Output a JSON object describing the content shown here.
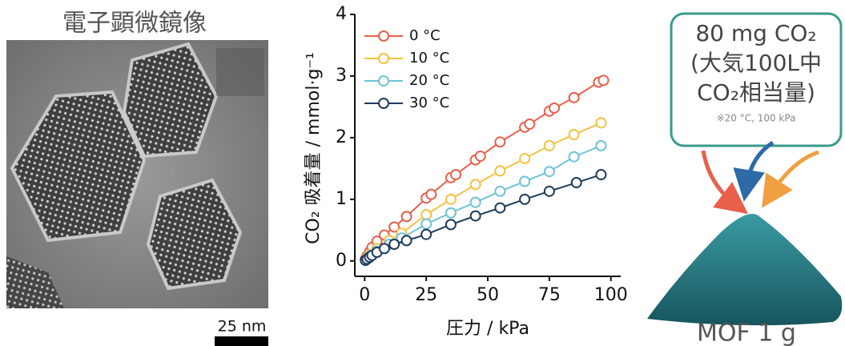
{
  "chart_data": {
    "type": "line",
    "x_label": "圧力 / kPa",
    "y_label": "CO₂ 吸着量 / mmol·g⁻¹",
    "xlim": [
      -4,
      104
    ],
    "ylim": [
      -0.25,
      4
    ],
    "xticks": [
      0,
      25,
      50,
      75,
      100
    ],
    "yticks": [
      0,
      1,
      2,
      3,
      4
    ],
    "legend": "upper-left",
    "series": [
      {
        "name": "0 °C",
        "color": "#e8604c",
        "x": [
          0.3,
          1,
          2,
          3,
          5,
          8,
          12,
          17,
          25,
          27,
          35,
          37,
          45,
          47,
          55,
          65,
          67,
          75,
          77,
          85,
          95,
          97
        ],
        "values": [
          0.03,
          0.08,
          0.15,
          0.22,
          0.32,
          0.42,
          0.55,
          0.72,
          1.02,
          1.08,
          1.35,
          1.4,
          1.64,
          1.7,
          1.93,
          2.17,
          2.22,
          2.43,
          2.48,
          2.65,
          2.9,
          2.93
        ]
      },
      {
        "name": "10 °C",
        "color": "#f5c242",
        "x": [
          0.5,
          2,
          5,
          10,
          15,
          25,
          35,
          45,
          55,
          65,
          75,
          85,
          96
        ],
        "values": [
          0.03,
          0.1,
          0.2,
          0.33,
          0.45,
          0.75,
          1.0,
          1.24,
          1.46,
          1.66,
          1.87,
          2.05,
          2.24
        ]
      },
      {
        "name": "20 °C",
        "color": "#6ec3d8",
        "x": [
          0.5,
          2,
          5,
          10,
          15,
          25,
          35,
          45,
          55,
          65,
          75,
          85,
          96
        ],
        "values": [
          0.02,
          0.08,
          0.16,
          0.27,
          0.37,
          0.6,
          0.78,
          0.95,
          1.13,
          1.29,
          1.45,
          1.69,
          1.87
        ]
      },
      {
        "name": "30 °C",
        "color": "#1f3b5c",
        "x": [
          0.3,
          1,
          2,
          3,
          5,
          8,
          12,
          17,
          25,
          35,
          45,
          55,
          65,
          75,
          86,
          96
        ],
        "values": [
          0.01,
          0.03,
          0.06,
          0.09,
          0.14,
          0.2,
          0.27,
          0.33,
          0.43,
          0.59,
          0.73,
          0.86,
          1.0,
          1.13,
          1.27,
          1.4
        ]
      }
    ]
  },
  "tem": {
    "title": "電子顕微鏡像",
    "scale_bar": "25 nm"
  },
  "illustration": {
    "box_lines": [
      "80 mg CO₂",
      "(大気100L中",
      "CO₂相当量)"
    ],
    "note": "※20 °C, 100 kPa",
    "label": "MOF 1 g"
  }
}
